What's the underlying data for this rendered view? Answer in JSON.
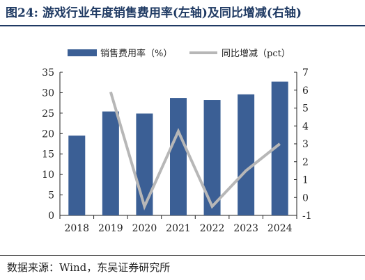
{
  "title": "图24:  游戏行业年度销售费用率(左轴)及同比增减(右轴)",
  "source": "数据来源：Wind，东吴证券研究所",
  "chart_data": {
    "type": "bar+line",
    "categories": [
      "2018",
      "2019",
      "2020",
      "2021",
      "2022",
      "2023",
      "2024"
    ],
    "series": [
      {
        "name": "销售费用率（%）",
        "type": "bar",
        "axis": "left",
        "color": "#3b5f95",
        "values": [
          19.5,
          25.4,
          24.9,
          28.7,
          28.2,
          29.6,
          32.7
        ]
      },
      {
        "name": "同比增减（pct）",
        "type": "line",
        "axis": "right",
        "color": "#b7b7b7",
        "values": [
          null,
          5.9,
          -0.5,
          3.7,
          -0.5,
          1.5,
          3.0
        ]
      }
    ],
    "y_left": {
      "min": 0,
      "max": 35,
      "ticks": [
        "0",
        "5",
        "10",
        "15",
        "20",
        "25",
        "30",
        "35"
      ]
    },
    "y_right": {
      "min": -1,
      "max": 7,
      "ticks": [
        "-1",
        "0",
        "1",
        "2",
        "3",
        "4",
        "5",
        "6",
        "7"
      ]
    },
    "legend": "top",
    "grid": false
  }
}
